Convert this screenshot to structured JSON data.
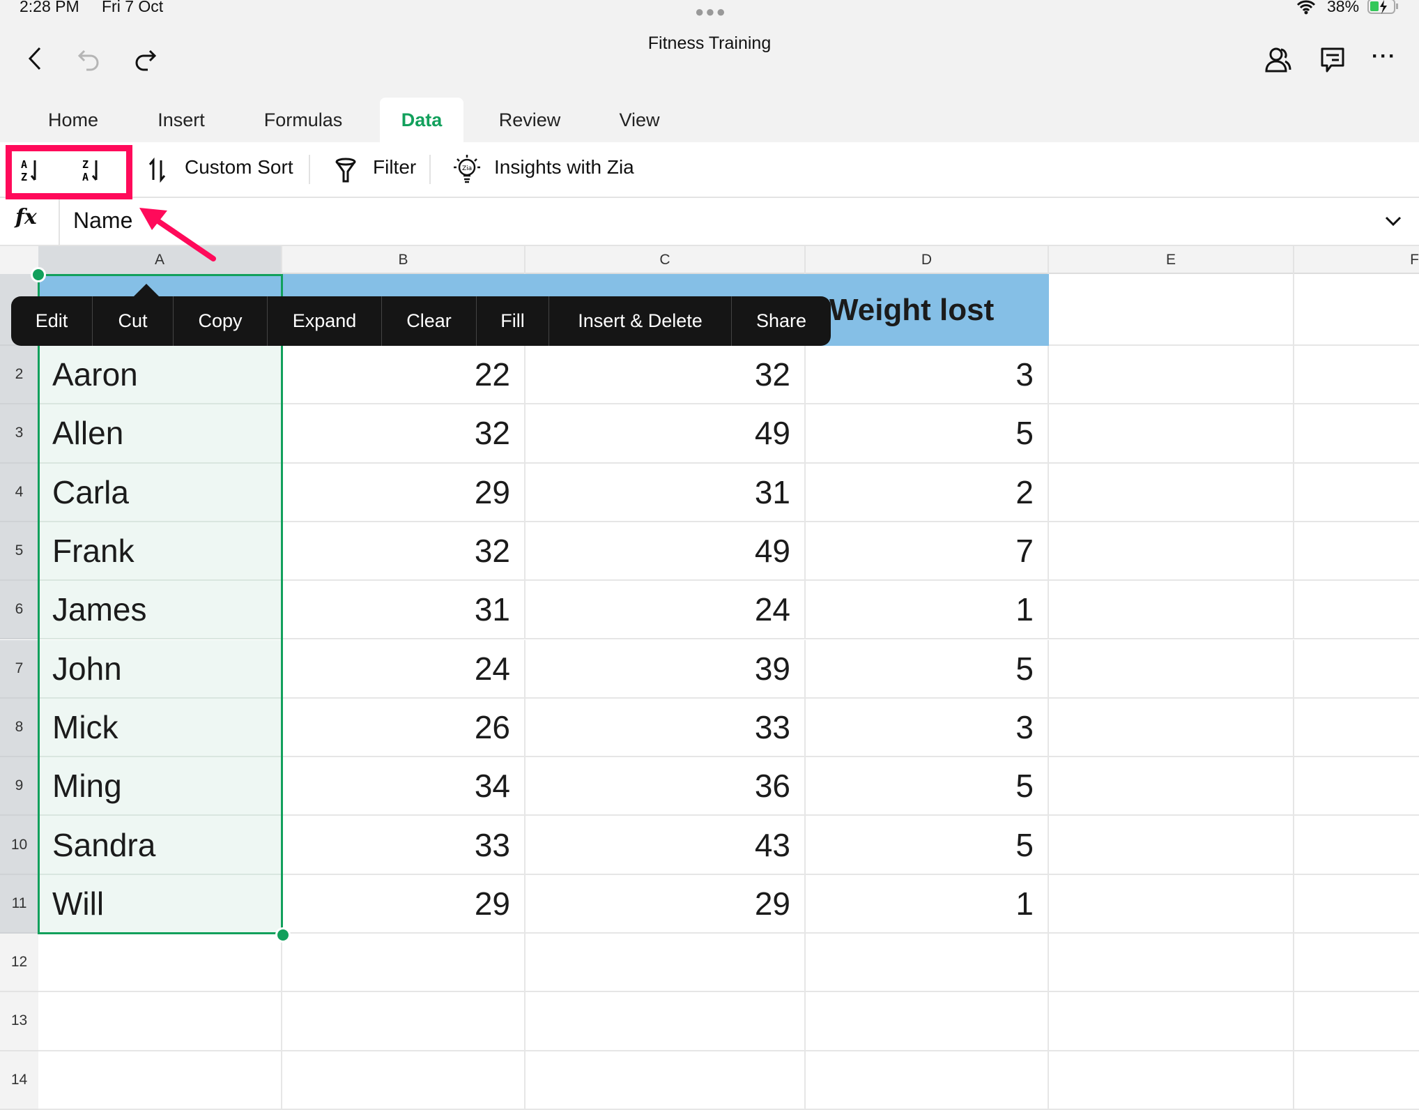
{
  "status": {
    "time": "2:28 PM",
    "date": "Fri 7 Oct",
    "battery": "38%"
  },
  "header": {
    "title": "Fitness Training"
  },
  "tabs": [
    {
      "label": "Home"
    },
    {
      "label": "Insert"
    },
    {
      "label": "Formulas"
    },
    {
      "label": "Data",
      "active": true
    },
    {
      "label": "Review"
    },
    {
      "label": "View"
    }
  ],
  "toolbar": {
    "custom_sort": "Custom Sort",
    "filter": "Filter",
    "insights": "Insights with Zia"
  },
  "formula": {
    "value": "Name"
  },
  "columns": [
    "A",
    "B",
    "C",
    "D",
    "E",
    "F"
  ],
  "row1": {
    "D": "Weight lost"
  },
  "rows": [
    {
      "num": "2",
      "name": "Aaron",
      "b": "22",
      "c": "32",
      "d": "3"
    },
    {
      "num": "3",
      "name": "Allen",
      "b": "32",
      "c": "49",
      "d": "5"
    },
    {
      "num": "4",
      "name": "Carla",
      "b": "29",
      "c": "31",
      "d": "2"
    },
    {
      "num": "5",
      "name": "Frank",
      "b": "32",
      "c": "49",
      "d": "7"
    },
    {
      "num": "6",
      "name": "James",
      "b": "31",
      "c": "24",
      "d": "1"
    },
    {
      "num": "7",
      "name": "John",
      "b": "24",
      "c": "39",
      "d": "5"
    },
    {
      "num": "8",
      "name": "Mick",
      "b": "26",
      "c": "33",
      "d": "3"
    },
    {
      "num": "9",
      "name": "Ming",
      "b": "34",
      "c": "36",
      "d": "5"
    },
    {
      "num": "10",
      "name": "Sandra",
      "b": "33",
      "c": "43",
      "d": "5"
    },
    {
      "num": "11",
      "name": "Will",
      "b": "29",
      "c": "29",
      "d": "1"
    }
  ],
  "empty_rows": [
    "12",
    "13",
    "14"
  ],
  "context_menu": [
    "Edit",
    "Cut",
    "Copy",
    "Expand",
    "Clear",
    "Fill",
    "Insert & Delete",
    "Share"
  ],
  "colors": {
    "accent": "#12a05c",
    "header_fill": "#85bfe6",
    "highlight": "#ff0a5a"
  }
}
